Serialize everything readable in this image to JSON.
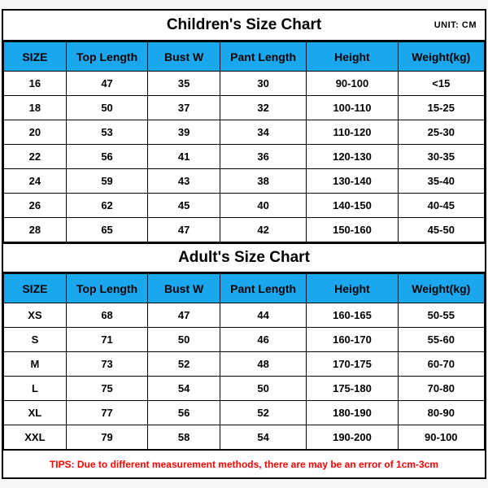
{
  "colors": {
    "header_bg": "#1aa7ee",
    "tips_color": "#ff0000",
    "border": "#000000",
    "bg": "#ffffff"
  },
  "unit_label": "UNIT: CM",
  "columns": [
    "SIZE",
    "Top Length",
    "Bust W",
    "Pant Length",
    "Height",
    "Weight(kg)"
  ],
  "children": {
    "title": "Children's Size Chart",
    "rows": [
      [
        "16",
        "47",
        "35",
        "30",
        "90-100",
        "<15"
      ],
      [
        "18",
        "50",
        "37",
        "32",
        "100-110",
        "15-25"
      ],
      [
        "20",
        "53",
        "39",
        "34",
        "110-120",
        "25-30"
      ],
      [
        "22",
        "56",
        "41",
        "36",
        "120-130",
        "30-35"
      ],
      [
        "24",
        "59",
        "43",
        "38",
        "130-140",
        "35-40"
      ],
      [
        "26",
        "62",
        "45",
        "40",
        "140-150",
        "40-45"
      ],
      [
        "28",
        "65",
        "47",
        "42",
        "150-160",
        "45-50"
      ]
    ]
  },
  "adult": {
    "title": "Adult's Size Chart",
    "rows": [
      [
        "XS",
        "68",
        "47",
        "44",
        "160-165",
        "50-55"
      ],
      [
        "S",
        "71",
        "50",
        "46",
        "160-170",
        "55-60"
      ],
      [
        "M",
        "73",
        "52",
        "48",
        "170-175",
        "60-70"
      ],
      [
        "L",
        "75",
        "54",
        "50",
        "175-180",
        "70-80"
      ],
      [
        "XL",
        "77",
        "56",
        "52",
        "180-190",
        "80-90"
      ],
      [
        "XXL",
        "79",
        "58",
        "54",
        "190-200",
        "90-100"
      ]
    ]
  },
  "tips": "TIPS: Due to different measurement methods, there are may be an error of 1cm-3cm"
}
